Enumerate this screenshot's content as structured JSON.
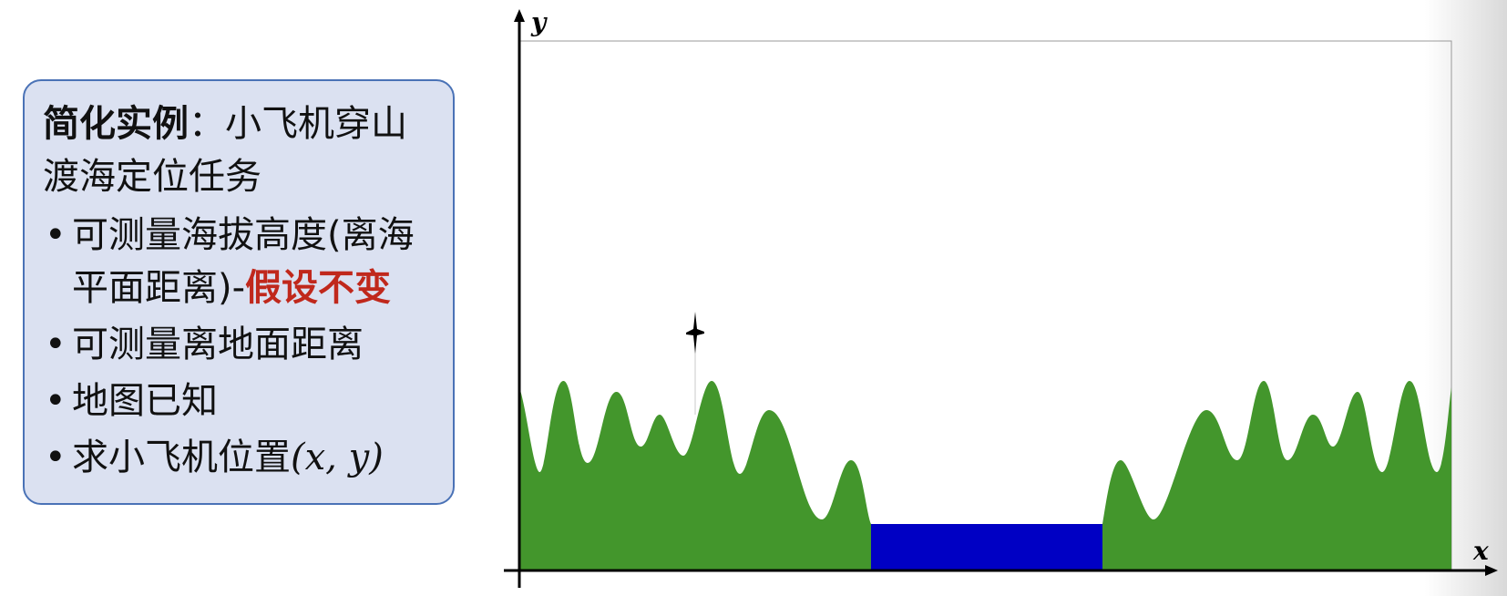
{
  "panel": {
    "intro_strong": "简化实例",
    "intro_rest": "：小飞机穿山渡海定位任务",
    "bullets": {
      "b1_text": "可测量海拔高度(离海平面距离)-",
      "b1_highlight": "假设不变",
      "b2_text": "可测量离地面距离",
      "b3_text": "地图已知",
      "b4_text": "求小飞机位置",
      "b4_math": "(x, y)"
    },
    "bullet_glyph": "•"
  },
  "diagram": {
    "axis_x_label": "x",
    "axis_y_label": "y",
    "colors": {
      "mountain": "#43962c",
      "sea": "#0000c4",
      "axis": "#000000",
      "frame": "#9a9a9a",
      "highlight": "#c0281c",
      "panel_bg": "#dbe1f1",
      "panel_border": "#4a72b6"
    },
    "icons": [
      "airplane-icon"
    ]
  }
}
